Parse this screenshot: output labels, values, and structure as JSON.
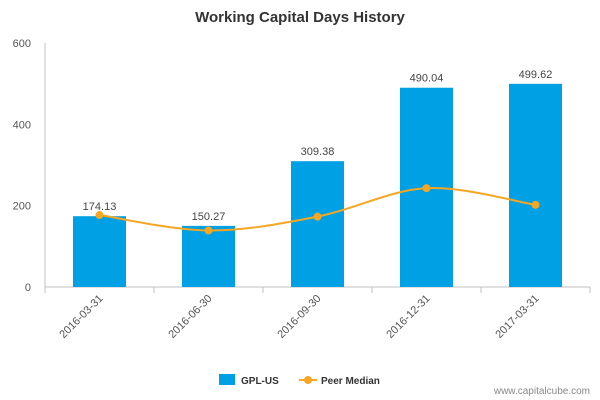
{
  "chart_data": {
    "type": "bar",
    "title": "Working Capital Days History",
    "categories": [
      "2016-03-31",
      "2016-06-30",
      "2016-09-30",
      "2016-12-31",
      "2017-03-31"
    ],
    "series": [
      {
        "name": "GPL-US",
        "type": "bar",
        "color": "#00a1e4",
        "values": [
          174.13,
          150.27,
          309.38,
          490.04,
          499.62
        ]
      },
      {
        "name": "Peer Median",
        "type": "line",
        "color": "#f5a623",
        "values": [
          177,
          139,
          173,
          243,
          202
        ]
      }
    ],
    "data_labels": [
      "174.13",
      "150.27",
      "309.38",
      "490.04",
      "499.62"
    ],
    "y_ticks": [
      "0",
      "200",
      "400",
      "600"
    ],
    "ylim": [
      0,
      600
    ],
    "legend_position": "bottom",
    "grid": false
  },
  "credit": "www.capitalcube.com"
}
